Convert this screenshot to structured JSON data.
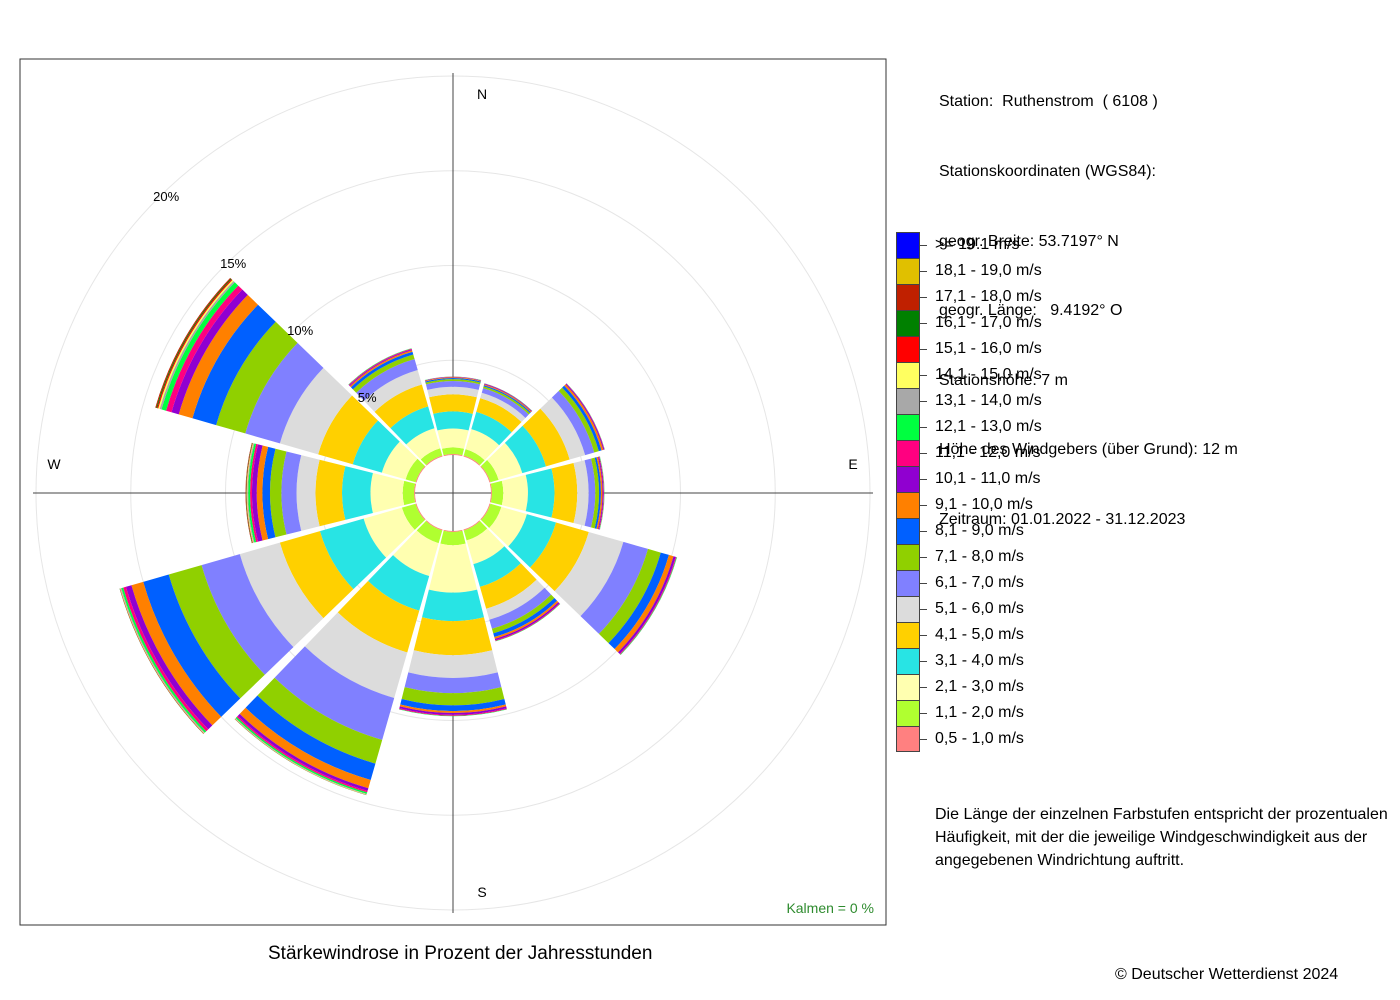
{
  "station": {
    "line1": "Station:  Ruthenstrom  ( 6108 )",
    "line2": "Stationskoordinaten (WGS84):",
    "line3": "geogr. Breite: 53.7197° N",
    "line4": "geogr. Länge:   9.4192° O",
    "line5": "Stationshöhe: 7 m",
    "line6": "Höhe des Windgebers (über Grund): 12 m",
    "line7": "Zeitraum: 01.01.2022 - 31.12.2023"
  },
  "legend": [
    {
      "label": ">= 19.1 m/s",
      "color": "#0000ff"
    },
    {
      "label": "18,1 - 19,0 m/s",
      "color": "#e0c000"
    },
    {
      "label": "17,1 - 18,0 m/s",
      "color": "#c02000"
    },
    {
      "label": "16,1 - 17,0 m/s",
      "color": "#008000"
    },
    {
      "label": "15,1 - 16,0 m/s",
      "color": "#ff0000"
    },
    {
      "label": "14,1 - 15,0 m/s",
      "color": "#ffff60"
    },
    {
      "label": "13,1 - 14,0 m/s",
      "color": "#a8a8a8"
    },
    {
      "label": "12,1 - 13,0 m/s",
      "color": "#00ff40"
    },
    {
      "label": "11,1 - 12,0 m/s",
      "color": "#ff0080"
    },
    {
      "label": "10,1 - 11,0 m/s",
      "color": "#9000d0"
    },
    {
      "label": "9,1 - 10,0 m/s",
      "color": "#ff8000"
    },
    {
      "label": "8,1 - 9,0 m/s",
      "color": "#0060ff"
    },
    {
      "label": "7,1 - 8,0 m/s",
      "color": "#90d000"
    },
    {
      "label": "6,1 - 7,0 m/s",
      "color": "#8080ff"
    },
    {
      "label": "5,1 - 6,0 m/s",
      "color": "#dcdcdc"
    },
    {
      "label": "4,1 - 5,0 m/s",
      "color": "#ffd000"
    },
    {
      "label": "3,1 - 4,0 m/s",
      "color": "#28e4e4"
    },
    {
      "label": "2,1 - 3,0 m/s",
      "color": "#ffffb0"
    },
    {
      "label": "1,1 - 2,0 m/s",
      "color": "#b0ff30"
    },
    {
      "label": "0,5 - 1,0 m/s",
      "color": "#ff8080"
    }
  ],
  "note": "Die Länge der einzelnen Farbstufen entspricht der prozentualen Häufigkeit, mit der die jeweilige Windgeschwindigkeit aus der angegebenen Windrichtung auftritt.",
  "caption": "Stärkewindrose in Prozent der Jahresstunden",
  "copyright": "© Deutscher Wetterdienst  2024",
  "chart_data": {
    "type": "wind-rose",
    "unit": "%",
    "ring_labels": [
      "5%",
      "10%",
      "15%",
      "20%"
    ],
    "rings": [
      5,
      10,
      15,
      20
    ],
    "direction_labels": {
      "N": "N",
      "E": "E",
      "S": "S",
      "W": "W"
    },
    "calm_label": "Kalmen  =  0 %",
    "directions_deg": [
      0,
      30,
      60,
      90,
      120,
      150,
      180,
      210,
      240,
      270,
      300,
      330
    ],
    "bins_order": [
      "0,5 - 1,0 m/s",
      "1,1 - 2,0 m/s",
      "2,1 - 3,0 m/s",
      "3,1 - 4,0 m/s",
      "4,1 - 5,0 m/s",
      "5,1 - 6,0 m/s",
      "6,1 - 7,0 m/s",
      "7,1 - 8,0 m/s",
      "8,1 - 9,0 m/s",
      "9,1 - 10,0 m/s",
      "10,1 - 11,0 m/s",
      "11,1 - 12,0 m/s",
      "12,1 - 13,0 m/s",
      "13,1 - 14,0 m/s",
      "14,1 - 15,0 m/s",
      "15,1 - 16,0 m/s",
      "16,1 - 17,0 m/s",
      "17,1 - 18,0 m/s",
      "18,1 - 19,0 m/s",
      ">= 19.1 m/s"
    ],
    "series": [
      {
        "direction": 0,
        "values": [
          0.05,
          0.35,
          1.0,
          0.9,
          0.9,
          0.4,
          0.3,
          0.1,
          0.06,
          0.04,
          0.02,
          0.01,
          0.01,
          0,
          0,
          0,
          0,
          0,
          0,
          0
        ]
      },
      {
        "direction": 30,
        "values": [
          0.05,
          0.35,
          1.1,
          0.95,
          0.75,
          0.3,
          0.25,
          0.1,
          0.06,
          0.05,
          0.04,
          0.01,
          0.01,
          0,
          0,
          0,
          0,
          0,
          0,
          0
        ]
      },
      {
        "direction": 60,
        "values": [
          0.05,
          0.45,
          1.3,
          1.3,
          1.3,
          0.85,
          0.5,
          0.25,
          0.15,
          0.1,
          0.05,
          0.02,
          0.01,
          0,
          0,
          0,
          0,
          0,
          0,
          0
        ]
      },
      {
        "direction": 90,
        "values": [
          0.05,
          0.6,
          1.3,
          1.4,
          1.2,
          0.6,
          0.35,
          0.2,
          0.1,
          0.08,
          0.05,
          0.03,
          0.02,
          0.01,
          0,
          0,
          0,
          0,
          0,
          0
        ]
      },
      {
        "direction": 120,
        "values": [
          0.05,
          0.6,
          1.4,
          1.6,
          1.8,
          1.9,
          1.35,
          0.7,
          0.45,
          0.25,
          0.12,
          0.04,
          0.03,
          0.01,
          0,
          0,
          0,
          0,
          0,
          0
        ]
      },
      {
        "direction": 150,
        "values": [
          0.05,
          0.55,
          1.3,
          1.25,
          1.2,
          0.6,
          0.5,
          0.25,
          0.2,
          0.1,
          0.08,
          0.04,
          0.02,
          0,
          0,
          0,
          0,
          0,
          0,
          0
        ]
      },
      {
        "direction": 180,
        "values": [
          0.05,
          0.7,
          2.5,
          1.5,
          1.8,
          1.2,
          0.8,
          0.65,
          0.3,
          0.1,
          0.1,
          0.05,
          0.02,
          0,
          0,
          0,
          0,
          0,
          0,
          0
        ]
      },
      {
        "direction": 210,
        "values": [
          0.05,
          0.7,
          1.8,
          1.9,
          2.3,
          2.5,
          2.3,
          1.3,
          0.9,
          0.45,
          0.15,
          0.08,
          0.08,
          0.03,
          0.02,
          0.01,
          0.01,
          0,
          0,
          0
        ]
      },
      {
        "direction": 240,
        "values": [
          0.05,
          0.75,
          2.1,
          2.4,
          2.2,
          2.2,
          2.1,
          1.8,
          1.4,
          0.65,
          0.3,
          0.15,
          0.1,
          0.05,
          0.02,
          0.02,
          0.01,
          0,
          0,
          0
        ]
      },
      {
        "direction": 270,
        "values": [
          0.05,
          0.6,
          1.7,
          1.5,
          1.4,
          1.0,
          0.8,
          0.6,
          0.4,
          0.3,
          0.25,
          0.1,
          0.1,
          0.05,
          0.03,
          0.02,
          0.02,
          0.02,
          0,
          0
        ]
      },
      {
        "direction": 300,
        "values": [
          0.05,
          0.55,
          1.3,
          1.6,
          1.9,
          2.1,
          1.9,
          1.6,
          1.3,
          0.75,
          0.4,
          0.3,
          0.25,
          0.1,
          0.08,
          0.06,
          0.05,
          0.05,
          0,
          0
        ]
      },
      {
        "direction": 330,
        "values": [
          0.05,
          0.4,
          1.1,
          1.2,
          1.2,
          0.8,
          0.6,
          0.25,
          0.15,
          0.08,
          0.05,
          0.04,
          0.02,
          0.01,
          0,
          0,
          0,
          0,
          0,
          0
        ]
      }
    ]
  }
}
